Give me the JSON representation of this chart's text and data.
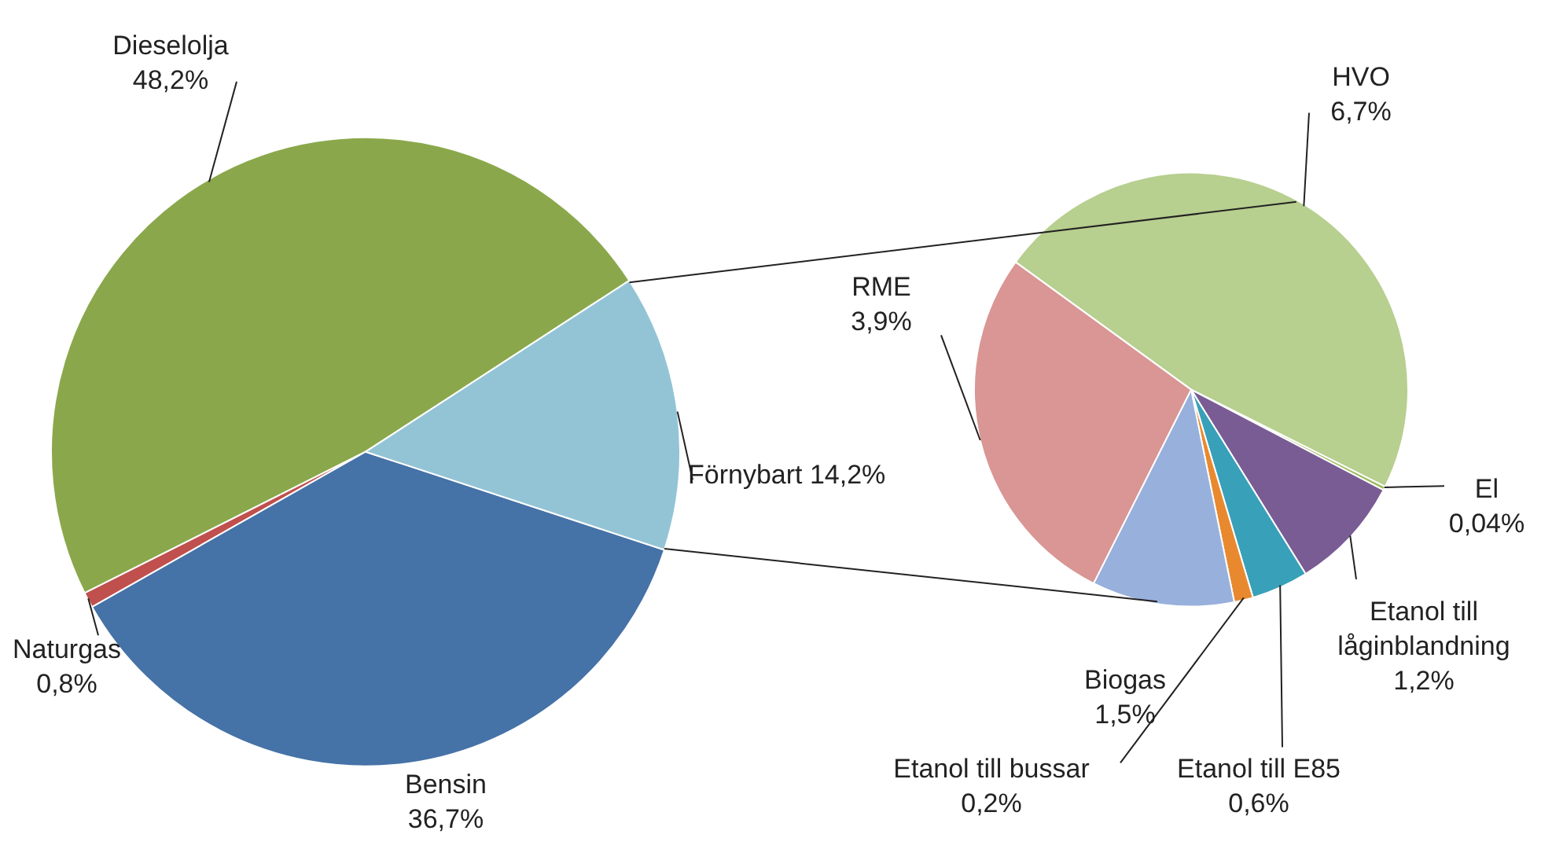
{
  "chart_data": [
    {
      "type": "pie",
      "categories": [
        "Dieselolja",
        "Naturgas",
        "Bensin",
        "Förnybart"
      ],
      "values": [
        48.2,
        0.8,
        36.7,
        14.2
      ],
      "colors": [
        "#8aa84b",
        "#c0504d",
        "#4572a7",
        "#93c4d6"
      ],
      "value_labels": [
        "48,2%",
        "0,8%",
        "36,7%",
        "14,2%"
      ]
    },
    {
      "type": "pie",
      "categories": [
        "HVO",
        "El",
        "Etanol till låginblandning",
        "Etanol till E85",
        "Etanol till bussar",
        "Biogas",
        "RME"
      ],
      "values": [
        6.7,
        0.04,
        1.2,
        0.6,
        0.2,
        1.5,
        3.9
      ],
      "colors": [
        "#b7cf8f",
        "#9bbb59",
        "#7a5c94",
        "#38a0b8",
        "#e8892f",
        "#98b0dc",
        "#d99694"
      ],
      "value_labels": [
        "6,7%",
        "0,04%",
        "1,2%",
        "0,6%",
        "0,2%",
        "1,5%",
        "3,9%"
      ]
    }
  ]
}
